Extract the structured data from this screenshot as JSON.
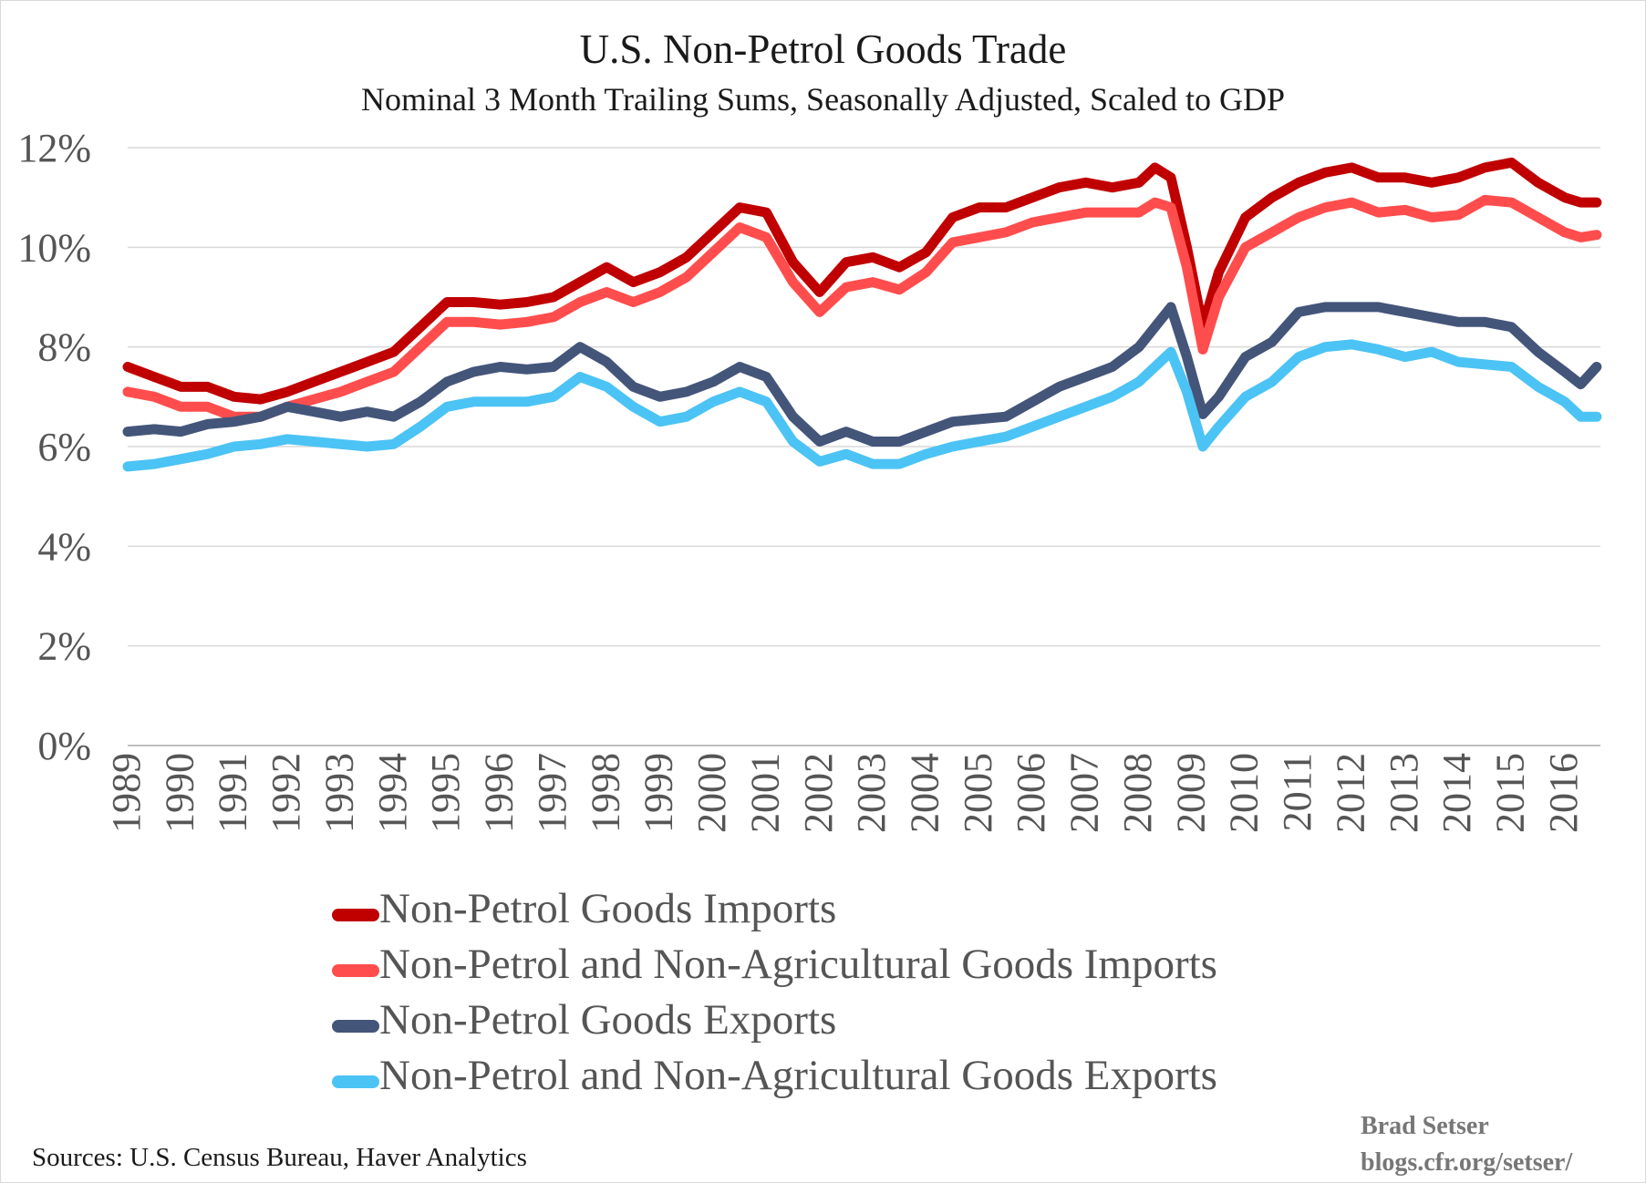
{
  "title": "U.S. Non-Petrol Goods Trade",
  "subtitle": "Nominal 3 Month Trailing Sums, Seasonally Adjusted, Scaled to GDP",
  "sources": "Sources: U.S. Census Bureau, Haver Analytics",
  "credit": {
    "author": "Brad Setser",
    "site": "blogs.cfr.org/setser/"
  },
  "chart_data": {
    "type": "line",
    "title": "U.S. Non-Petrol Goods Trade",
    "subtitle": "Nominal 3 Month Trailing Sums, Seasonally Adjusted, Scaled to GDP",
    "xlabel": "",
    "ylabel": "",
    "xlim": [
      1989.0,
      2016.67
    ],
    "ylim": [
      0,
      12
    ],
    "y_ticks": [
      0,
      2,
      4,
      6,
      8,
      10,
      12
    ],
    "y_tick_labels": [
      "0%",
      "2%",
      "4%",
      "6%",
      "8%",
      "10%",
      "12%"
    ],
    "x_tick_labels": [
      "1989",
      "1990",
      "1991",
      "1992",
      "1993",
      "1994",
      "1995",
      "1996",
      "1997",
      "1998",
      "1999",
      "2000",
      "2001",
      "2002",
      "2003",
      "2004",
      "2005",
      "2006",
      "2007",
      "2008",
      "2009",
      "2010",
      "2011",
      "2012",
      "2013",
      "2014",
      "2015",
      "2016"
    ],
    "grid": "horizontal",
    "legend": "bottom",
    "series": [
      {
        "name": "Non-Petrol Goods Imports",
        "color": "#c00000",
        "x": [
          1989.0,
          1989.5,
          1990.0,
          1990.5,
          1991.0,
          1991.5,
          1992.0,
          1992.5,
          1993.0,
          1993.5,
          1994.0,
          1994.5,
          1995.0,
          1995.5,
          1996.0,
          1996.5,
          1997.0,
          1997.5,
          1998.0,
          1998.5,
          1999.0,
          1999.5,
          2000.0,
          2000.5,
          2001.0,
          2001.5,
          2002.0,
          2002.5,
          2003.0,
          2003.5,
          2004.0,
          2004.5,
          2005.0,
          2005.5,
          2006.0,
          2006.5,
          2007.0,
          2007.5,
          2008.0,
          2008.3,
          2008.6,
          2008.9,
          2009.2,
          2009.5,
          2010.0,
          2010.5,
          2011.0,
          2011.5,
          2012.0,
          2012.5,
          2013.0,
          2013.5,
          2014.0,
          2014.5,
          2015.0,
          2015.5,
          2016.0,
          2016.3,
          2016.6
        ],
        "values": [
          7.6,
          7.4,
          7.2,
          7.2,
          7.0,
          6.95,
          7.1,
          7.3,
          7.5,
          7.7,
          7.9,
          8.4,
          8.9,
          8.9,
          8.85,
          8.9,
          9.0,
          9.3,
          9.6,
          9.3,
          9.5,
          9.8,
          10.3,
          10.8,
          10.7,
          9.7,
          9.1,
          9.7,
          9.8,
          9.6,
          9.9,
          10.6,
          10.8,
          10.8,
          11.0,
          11.2,
          11.3,
          11.2,
          11.3,
          11.6,
          11.4,
          10.0,
          8.4,
          9.5,
          10.6,
          11.0,
          11.3,
          11.5,
          11.6,
          11.4,
          11.4,
          11.3,
          11.4,
          11.6,
          11.7,
          11.3,
          11.0,
          10.9,
          10.9
        ]
      },
      {
        "name": "Non-Petrol and Non-Agricultural Goods Imports",
        "color": "#ff4d4d",
        "x": [
          1989.0,
          1989.5,
          1990.0,
          1990.5,
          1991.0,
          1991.5,
          1992.0,
          1992.5,
          1993.0,
          1993.5,
          1994.0,
          1994.5,
          1995.0,
          1995.5,
          1996.0,
          1996.5,
          1997.0,
          1997.5,
          1998.0,
          1998.5,
          1999.0,
          1999.5,
          2000.0,
          2000.5,
          2001.0,
          2001.5,
          2002.0,
          2002.5,
          2003.0,
          2003.5,
          2004.0,
          2004.5,
          2005.0,
          2005.5,
          2006.0,
          2006.5,
          2007.0,
          2007.5,
          2008.0,
          2008.3,
          2008.6,
          2008.9,
          2009.2,
          2009.5,
          2010.0,
          2010.5,
          2011.0,
          2011.5,
          2012.0,
          2012.5,
          2013.0,
          2013.5,
          2014.0,
          2014.5,
          2015.0,
          2015.5,
          2016.0,
          2016.3,
          2016.6
        ],
        "values": [
          7.1,
          7.0,
          6.8,
          6.8,
          6.6,
          6.6,
          6.8,
          6.95,
          7.1,
          7.3,
          7.5,
          8.0,
          8.5,
          8.5,
          8.45,
          8.5,
          8.6,
          8.9,
          9.1,
          8.9,
          9.1,
          9.4,
          9.9,
          10.4,
          10.2,
          9.3,
          8.7,
          9.2,
          9.3,
          9.15,
          9.5,
          10.1,
          10.2,
          10.3,
          10.5,
          10.6,
          10.7,
          10.7,
          10.7,
          10.9,
          10.8,
          9.6,
          7.95,
          9.0,
          10.0,
          10.3,
          10.6,
          10.8,
          10.9,
          10.7,
          10.75,
          10.6,
          10.65,
          10.95,
          10.9,
          10.6,
          10.3,
          10.2,
          10.25
        ]
      },
      {
        "name": "Non-Petrol Goods Exports",
        "color": "#44557a",
        "x": [
          1989.0,
          1989.5,
          1990.0,
          1990.5,
          1991.0,
          1991.5,
          1992.0,
          1992.5,
          1993.0,
          1993.5,
          1994.0,
          1994.5,
          1995.0,
          1995.5,
          1996.0,
          1996.5,
          1997.0,
          1997.5,
          1998.0,
          1998.5,
          1999.0,
          1999.5,
          2000.0,
          2000.5,
          2001.0,
          2001.5,
          2002.0,
          2002.5,
          2003.0,
          2003.5,
          2004.0,
          2004.5,
          2005.0,
          2005.5,
          2006.0,
          2006.5,
          2007.0,
          2007.5,
          2008.0,
          2008.3,
          2008.6,
          2008.9,
          2009.2,
          2009.5,
          2010.0,
          2010.5,
          2011.0,
          2011.5,
          2012.0,
          2012.5,
          2013.0,
          2013.5,
          2014.0,
          2014.5,
          2015.0,
          2015.5,
          2016.0,
          2016.3,
          2016.6
        ],
        "values": [
          6.3,
          6.35,
          6.3,
          6.45,
          6.5,
          6.6,
          6.8,
          6.7,
          6.6,
          6.7,
          6.6,
          6.9,
          7.3,
          7.5,
          7.6,
          7.55,
          7.6,
          8.0,
          7.7,
          7.2,
          7.0,
          7.1,
          7.3,
          7.6,
          7.4,
          6.6,
          6.1,
          6.3,
          6.1,
          6.1,
          6.3,
          6.5,
          6.55,
          6.6,
          6.9,
          7.2,
          7.4,
          7.6,
          8.0,
          8.4,
          8.8,
          7.8,
          6.65,
          7.0,
          7.8,
          8.1,
          8.7,
          8.8,
          8.8,
          8.8,
          8.7,
          8.6,
          8.5,
          8.5,
          8.4,
          7.9,
          7.5,
          7.25,
          7.6
        ]
      },
      {
        "name": "Non-Petrol and Non-Agricultural Goods Exports",
        "color": "#4cc3f5",
        "x": [
          1989.0,
          1989.5,
          1990.0,
          1990.5,
          1991.0,
          1991.5,
          1992.0,
          1992.5,
          1993.0,
          1993.5,
          1994.0,
          1994.5,
          1995.0,
          1995.5,
          1996.0,
          1996.5,
          1997.0,
          1997.5,
          1998.0,
          1998.5,
          1999.0,
          1999.5,
          2000.0,
          2000.5,
          2001.0,
          2001.5,
          2002.0,
          2002.5,
          2003.0,
          2003.5,
          2004.0,
          2004.5,
          2005.0,
          2005.5,
          2006.0,
          2006.5,
          2007.0,
          2007.5,
          2008.0,
          2008.3,
          2008.6,
          2008.9,
          2009.2,
          2009.5,
          2010.0,
          2010.5,
          2011.0,
          2011.5,
          2012.0,
          2012.5,
          2013.0,
          2013.5,
          2014.0,
          2014.5,
          2015.0,
          2015.5,
          2016.0,
          2016.3,
          2016.6
        ],
        "values": [
          5.6,
          5.65,
          5.75,
          5.85,
          6.0,
          6.05,
          6.15,
          6.1,
          6.05,
          6.0,
          6.05,
          6.4,
          6.8,
          6.9,
          6.9,
          6.9,
          7.0,
          7.4,
          7.2,
          6.8,
          6.5,
          6.6,
          6.9,
          7.1,
          6.9,
          6.1,
          5.7,
          5.85,
          5.65,
          5.65,
          5.85,
          6.0,
          6.1,
          6.2,
          6.4,
          6.6,
          6.8,
          7.0,
          7.3,
          7.6,
          7.9,
          7.1,
          6.0,
          6.4,
          7.0,
          7.3,
          7.8,
          8.0,
          8.05,
          7.95,
          7.8,
          7.9,
          7.7,
          7.65,
          7.6,
          7.2,
          6.9,
          6.6,
          6.6
        ]
      }
    ]
  }
}
